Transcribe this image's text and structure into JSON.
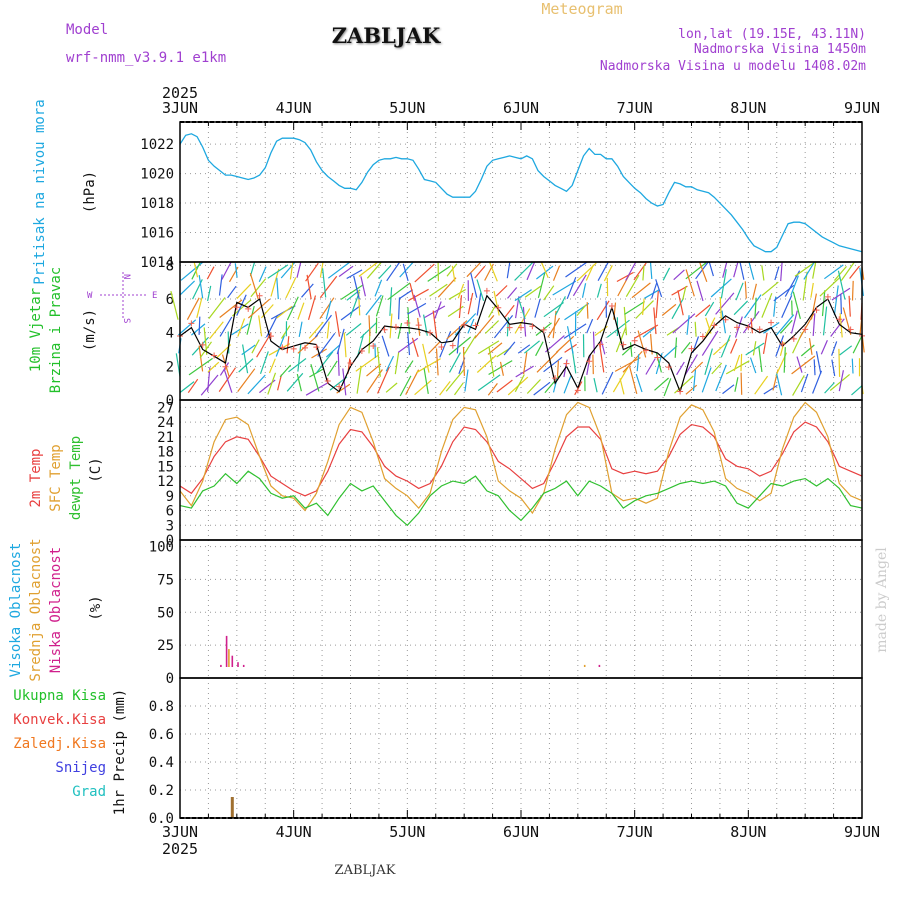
{
  "header": {
    "model_label": "Model",
    "model_name": "wrf-nmm_v3.9.1 e1km",
    "title": "ZABLJAK",
    "subtitle": "Meteogram",
    "location": "lon,lat (19.15E, 43.11N)",
    "elevation": "Nadmorska Visina 1450m",
    "model_elevation": "Nadmorska Visina u modelu 1408.02m",
    "year_top": "2025",
    "year_bottom": "2025",
    "footer": "ZABLJAK",
    "credit": "made by Angel"
  },
  "colors": {
    "pressure": "#1ea8e0",
    "wind_label": "#22c02a",
    "wind_dir": "#a040d0",
    "temp2m": "#e84040",
    "sfc": "#e0a030",
    "dew": "#30c030",
    "high_cloud": "#1ea8e0",
    "mid_cloud": "#e0a030",
    "low_cloud": "#d0208c",
    "total_precip": "#22c02a",
    "conv_precip": "#e84040",
    "frz_precip": "#f07820",
    "snow": "#4040e0",
    "hail": "#20c0c0",
    "precip_bar": "#a07030"
  },
  "chart_data": [
    {
      "type": "line",
      "panel": "pressure",
      "ylabel": [
        "Pritisak na nivou mora",
        "(hPa)"
      ],
      "ylim": [
        1014,
        1023.5
      ],
      "yticks": [
        1014,
        1016,
        1018,
        1020,
        1022
      ],
      "x_days": [
        0,
        0.05,
        0.1,
        0.15,
        0.2,
        0.25,
        0.3,
        0.35,
        0.4,
        0.45,
        0.5,
        0.55,
        0.6,
        0.65,
        0.7,
        0.75,
        0.8,
        0.85,
        0.9,
        0.95,
        1.0,
        1.05,
        1.1,
        1.15,
        1.2,
        1.25,
        1.3,
        1.35,
        1.4,
        1.45,
        1.5,
        1.55,
        1.6,
        1.65,
        1.7,
        1.75,
        1.8,
        1.85,
        1.9,
        1.95,
        2.0,
        2.05,
        2.1,
        2.15,
        2.2,
        2.25,
        2.3,
        2.35,
        2.4,
        2.45,
        2.5,
        2.55,
        2.6,
        2.65,
        2.7,
        2.75,
        2.8,
        2.85,
        2.9,
        2.95,
        3.0,
        3.05,
        3.1,
        3.15,
        3.2,
        3.25,
        3.3,
        3.35,
        3.4,
        3.45,
        3.5,
        3.55,
        3.6,
        3.65,
        3.7,
        3.75,
        3.8,
        3.85,
        3.9,
        3.95,
        4.0,
        4.05,
        4.1,
        4.15,
        4.2,
        4.25,
        4.3,
        4.35,
        4.4,
        4.45,
        4.5,
        4.55,
        4.6,
        4.65,
        4.7,
        4.75,
        4.8,
        4.85,
        4.9,
        4.95,
        5.0,
        5.05,
        5.1,
        5.15,
        5.2,
        5.25,
        5.3,
        5.35,
        5.4,
        5.45,
        5.5,
        5.55,
        5.6,
        5.65,
        5.7,
        5.75,
        5.8,
        5.85,
        5.9,
        5.95,
        6.0
      ],
      "values": [
        1022.0,
        1022.6,
        1022.7,
        1022.5,
        1021.8,
        1020.9,
        1020.5,
        1020.2,
        1019.9,
        1019.9,
        1019.8,
        1019.7,
        1019.6,
        1019.7,
        1019.9,
        1020.4,
        1021.4,
        1022.2,
        1022.4,
        1022.4,
        1022.4,
        1022.3,
        1022.1,
        1021.6,
        1020.8,
        1020.2,
        1019.8,
        1019.5,
        1019.2,
        1019.0,
        1019.0,
        1018.9,
        1019.4,
        1020.1,
        1020.6,
        1020.9,
        1021.0,
        1021.0,
        1021.1,
        1021.0,
        1021.0,
        1020.9,
        1020.3,
        1019.6,
        1019.5,
        1019.4,
        1019.0,
        1018.6,
        1018.4,
        1018.4,
        1018.4,
        1018.4,
        1018.8,
        1019.6,
        1020.5,
        1020.9,
        1021.0,
        1021.1,
        1021.2,
        1021.1,
        1021.0,
        1021.2,
        1021.0,
        1020.2,
        1019.8,
        1019.5,
        1019.2,
        1019.0,
        1018.8,
        1019.2,
        1020.2,
        1021.2,
        1021.7,
        1021.3,
        1021.3,
        1021.0,
        1021.0,
        1020.5,
        1019.8,
        1019.4,
        1019.0,
        1018.7,
        1018.3,
        1018.0,
        1017.8,
        1017.9,
        1018.7,
        1019.4,
        1019.3,
        1019.1,
        1019.1,
        1018.9,
        1018.8,
        1018.7,
        1018.4,
        1018.0,
        1017.6,
        1017.2,
        1016.7,
        1016.2,
        1015.6,
        1015.1,
        1014.9,
        1014.7,
        1014.7,
        1015.0,
        1015.8,
        1016.6,
        1016.7,
        1016.7,
        1016.6,
        1016.3,
        1016.0,
        1015.7,
        1015.5,
        1015.3,
        1015.1,
        1015.0,
        1014.9,
        1014.8,
        1014.7
      ]
    },
    {
      "type": "line",
      "panel": "wind",
      "ylabel": [
        "10m Vjetar",
        "Brzina i Pravac",
        "(m/s)"
      ],
      "dir_legend": {
        "n": "N",
        "s": "S",
        "w": "W",
        "e": "E"
      },
      "ylim": [
        0,
        8.2
      ],
      "yticks": [
        0,
        2,
        4,
        6,
        8
      ],
      "x_days": [
        0,
        0.1,
        0.2,
        0.3,
        0.4,
        0.5,
        0.6,
        0.7,
        0.8,
        0.9,
        1.0,
        1.1,
        1.2,
        1.3,
        1.4,
        1.5,
        1.6,
        1.7,
        1.8,
        1.9,
        2.0,
        2.1,
        2.2,
        2.3,
        2.4,
        2.5,
        2.6,
        2.7,
        2.8,
        2.9,
        3.0,
        3.1,
        3.2,
        3.3,
        3.4,
        3.5,
        3.6,
        3.7,
        3.8,
        3.9,
        4.0,
        4.1,
        4.2,
        4.3,
        4.4,
        4.5,
        4.6,
        4.7,
        4.8,
        4.9,
        5.0,
        5.1,
        5.2,
        5.3,
        5.4,
        5.5,
        5.6,
        5.7,
        5.8,
        5.9,
        6.0
      ],
      "values": [
        3.8,
        4.3,
        3.0,
        2.6,
        2.2,
        5.8,
        5.5,
        6.0,
        3.5,
        3.0,
        3.2,
        3.4,
        3.3,
        1.0,
        0.5,
        2.0,
        3.0,
        3.5,
        4.4,
        4.3,
        4.3,
        4.2,
        4.0,
        3.4,
        3.5,
        4.5,
        4.2,
        6.2,
        5.4,
        4.5,
        4.6,
        4.5,
        4.0,
        1.0,
        2.0,
        0.7,
        2.6,
        3.5,
        5.5,
        3.0,
        3.3,
        3.0,
        2.8,
        2.2,
        0.5,
        2.8,
        3.5,
        4.4,
        5.0,
        4.6,
        4.4,
        4.0,
        4.3,
        3.2,
        3.8,
        4.5,
        5.5,
        6.0,
        4.5,
        4.0,
        3.9
      ]
    },
    {
      "type": "line",
      "panel": "temperature",
      "ylabel": [
        "2m Temp",
        "SFC Temp",
        "dewpt Temp",
        "(C)"
      ],
      "ylim": [
        0,
        28.5
      ],
      "yticks": [
        0,
        3,
        6,
        9,
        12,
        15,
        18,
        21,
        24,
        27
      ],
      "x_days": [
        0,
        0.1,
        0.2,
        0.3,
        0.4,
        0.5,
        0.6,
        0.7,
        0.8,
        0.9,
        1.0,
        1.1,
        1.2,
        1.3,
        1.4,
        1.5,
        1.6,
        1.7,
        1.8,
        1.9,
        2.0,
        2.1,
        2.2,
        2.3,
        2.4,
        2.5,
        2.6,
        2.7,
        2.8,
        2.9,
        3.0,
        3.1,
        3.2,
        3.3,
        3.4,
        3.5,
        3.6,
        3.7,
        3.8,
        3.9,
        4.0,
        4.1,
        4.2,
        4.3,
        4.4,
        4.5,
        4.6,
        4.7,
        4.8,
        4.9,
        5.0,
        5.1,
        5.2,
        5.3,
        5.4,
        5.5,
        5.6,
        5.7,
        5.8,
        5.9,
        6.0
      ],
      "series": [
        {
          "name": "2m Temp",
          "values": [
            11.0,
            9.5,
            12.5,
            17.0,
            20.0,
            21.0,
            20.5,
            17.0,
            13.0,
            11.5,
            10.0,
            9.0,
            10.0,
            14.0,
            19.5,
            22.5,
            22.0,
            19.0,
            15.0,
            13.0,
            12.0,
            10.5,
            11.5,
            15.0,
            20.0,
            23.0,
            22.5,
            20.0,
            16.0,
            14.5,
            12.5,
            10.5,
            11.5,
            16.0,
            21.0,
            23.0,
            23.0,
            20.5,
            14.5,
            13.5,
            14.0,
            13.5,
            14.0,
            17.0,
            21.5,
            23.5,
            23.0,
            21.0,
            16.5,
            15.0,
            14.5,
            13.0,
            14.0,
            17.5,
            22.0,
            24.0,
            23.0,
            20.0,
            15.0,
            14.0,
            13.0
          ]
        },
        {
          "name": "SFC Temp",
          "values": [
            10.0,
            7.0,
            12.0,
            20.0,
            24.5,
            25.0,
            23.5,
            17.0,
            11.0,
            9.0,
            8.5,
            6.0,
            9.5,
            16.0,
            23.5,
            27.0,
            26.0,
            20.0,
            12.5,
            10.5,
            9.0,
            6.5,
            9.5,
            18.0,
            24.5,
            27.0,
            26.5,
            21.0,
            12.0,
            10.0,
            8.5,
            5.5,
            9.5,
            18.5,
            25.5,
            28.0,
            27.0,
            21.0,
            9.5,
            8.0,
            8.5,
            7.5,
            8.5,
            18.0,
            25.0,
            27.5,
            26.5,
            22.0,
            12.5,
            10.5,
            9.5,
            8.0,
            9.5,
            18.5,
            25.0,
            28.0,
            26.0,
            21.0,
            11.5,
            9.0,
            8.0
          ]
        },
        {
          "name": "dewpt Temp",
          "values": [
            7.0,
            6.5,
            10.0,
            11.0,
            13.5,
            11.5,
            14.0,
            12.5,
            9.5,
            8.5,
            9.0,
            6.5,
            7.5,
            5.0,
            8.5,
            11.5,
            10.0,
            11.0,
            8.0,
            5.0,
            3.0,
            5.5,
            9.0,
            11.0,
            12.0,
            11.5,
            13.0,
            10.0,
            9.0,
            6.0,
            4.0,
            6.5,
            9.5,
            10.5,
            12.0,
            9.0,
            12.0,
            11.0,
            9.5,
            6.5,
            8.0,
            9.0,
            9.5,
            10.5,
            11.5,
            12.0,
            11.5,
            12.0,
            11.0,
            7.5,
            6.5,
            9.0,
            11.5,
            11.0,
            12.0,
            12.5,
            11.0,
            12.5,
            10.5,
            7.0,
            6.5
          ]
        }
      ]
    },
    {
      "type": "bar",
      "panel": "clouds",
      "ylabel": [
        "Visoka Oblacnost",
        "Srednja Oblacnost",
        "Niska Oblacnost",
        "(%)"
      ],
      "ylim": [
        0,
        105
      ],
      "yticks": [
        0,
        25,
        50,
        75,
        100
      ],
      "series": [
        {
          "name": "Visoka Oblacnost",
          "points": [
            [
              0.39,
              5
            ],
            [
              2.32,
              3
            ],
            [
              3.8,
              1
            ]
          ]
        },
        {
          "name": "Srednja Oblacnost",
          "points": [
            [
              0.43,
              22
            ],
            [
              1.61,
              7
            ],
            [
              3.56,
              10
            ],
            [
              3.66,
              5
            ]
          ]
        },
        {
          "name": "Niska Oblacnost",
          "points": [
            [
              0.36,
              10
            ],
            [
              0.41,
              32
            ],
            [
              0.46,
              17
            ],
            [
              0.51,
              12
            ],
            [
              0.56,
              10
            ],
            [
              3.69,
              10
            ],
            [
              4.36,
              5
            ],
            [
              4.66,
              7
            ]
          ]
        }
      ]
    },
    {
      "type": "bar",
      "panel": "precip",
      "ylabel": [
        "1hr Precip (mm)"
      ],
      "legend": [
        "Ukupna Kisa",
        "Konvek.Kisa",
        "Zaledj.Kisa",
        "Snijeg",
        "Grad"
      ],
      "ylim": [
        0,
        1.0
      ],
      "yticks": [
        0,
        0.2,
        0.4,
        0.6,
        0.8
      ],
      "points": [
        [
          0.46,
          0.15
        ]
      ]
    }
  ],
  "x_axis": {
    "days": [
      "3JUN",
      "4JUN",
      "5JUN",
      "6JUN",
      "7JUN",
      "8JUN",
      "9JUN"
    ]
  }
}
